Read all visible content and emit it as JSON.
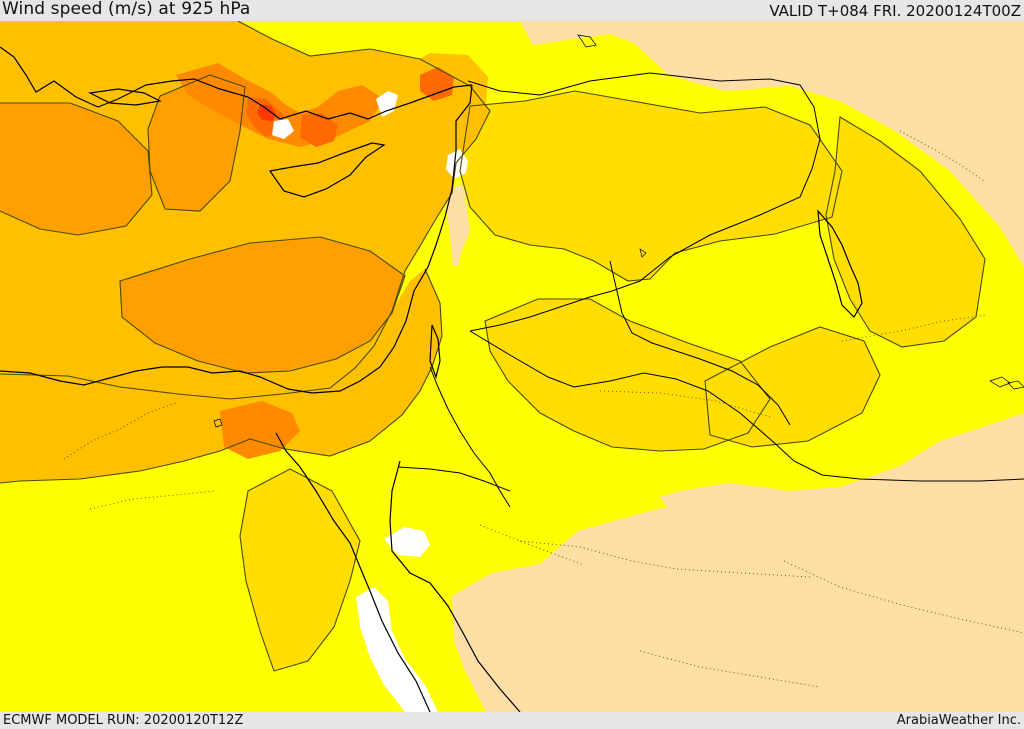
{
  "header": {
    "title": "Wind speed (m/s) at 925 hPa",
    "valid_time": "VALID T+084 FRI. 20200124T00Z"
  },
  "footer": {
    "model_run": "ECMWF MODEL RUN: 20200120T12Z",
    "credit": "ArabiaWeather Inc."
  },
  "map": {
    "variable": "wind speed",
    "pressure_level_hpa": 925,
    "colors": {
      "lowest": "#ffffff",
      "low": "#ffdfa6",
      "medium": "#ffff00",
      "elevated": "#ffde00",
      "high": "#ffc000",
      "higher": "#ffa000",
      "strong": "#ff8a00",
      "very_strong": "#ff6a00",
      "extreme": "#ff3a00",
      "contour": "#4a4a00",
      "coastline": "#000000",
      "boundary": "#000000"
    }
  }
}
